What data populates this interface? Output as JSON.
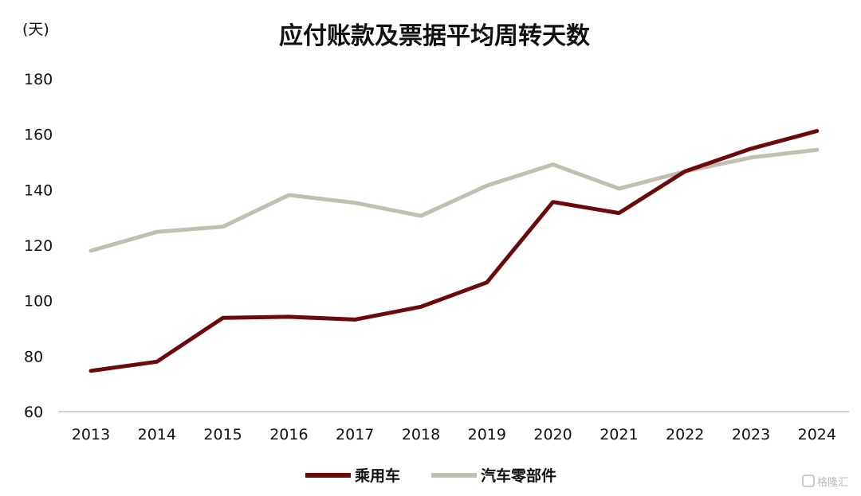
{
  "chart_data": {
    "type": "line",
    "title": "应付账款及票据平均周转天数",
    "unit_label": "(天)",
    "x": [
      "2013",
      "2014",
      "2015",
      "2016",
      "2017",
      "2018",
      "2019",
      "2020",
      "2021",
      "2022",
      "2023",
      "2024"
    ],
    "ylim": [
      60,
      180
    ],
    "yticks": [
      60,
      80,
      100,
      120,
      140,
      160,
      180
    ],
    "grid": false,
    "legend_position": "bottom",
    "series": [
      {
        "name": "乘用车",
        "color": "#6b0a0a",
        "values": [
          74.7,
          78,
          93.8,
          94.2,
          93.2,
          97.8,
          106.6,
          135.6,
          131.6,
          146.6,
          154.8,
          161.2
        ]
      },
      {
        "name": "汽车零部件",
        "color": "#c2bfb0",
        "values": [
          118,
          124.8,
          126.7,
          138.1,
          135.3,
          130.6,
          141.5,
          149.1,
          140.4,
          146.6,
          151.6,
          154.4
        ]
      }
    ]
  },
  "watermark": {
    "text": "格隆汇"
  }
}
